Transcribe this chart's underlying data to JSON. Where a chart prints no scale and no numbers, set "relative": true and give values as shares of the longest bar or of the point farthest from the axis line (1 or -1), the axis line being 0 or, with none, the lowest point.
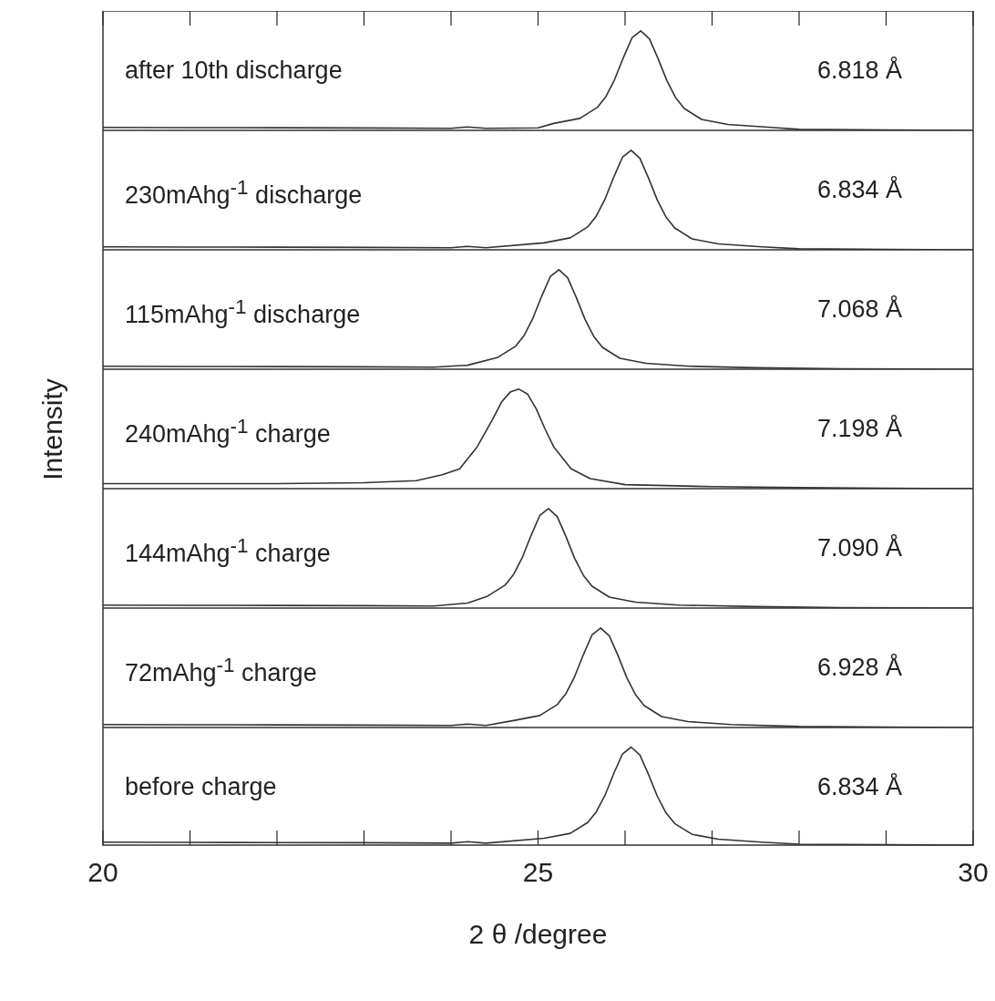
{
  "chart_data": [
    {
      "type": "line",
      "relative": true,
      "color": "#333333",
      "xlim": [
        20,
        30
      ],
      "xticks": [
        20,
        {
          "value": 21,
          "label": null
        },
        {
          "value": 22,
          "label": null
        },
        {
          "value": 23,
          "label": null
        },
        {
          "value": 24,
          "label": null
        },
        25,
        {
          "value": 26,
          "label": null
        },
        {
          "value": 27,
          "label": null
        },
        {
          "value": 28,
          "label": null
        },
        {
          "value": 29,
          "label": null
        },
        30
      ],
      "tick_labels": false,
      "annotations": [
        "after 10th discharge",
        "6.818 Å"
      ],
      "x": [
        20,
        21,
        22,
        23,
        24,
        24.19,
        24.4,
        25,
        25.18,
        25.48,
        25.68,
        25.78,
        25.88,
        25.98,
        26.08,
        26.18,
        26.28,
        26.38,
        26.48,
        26.58,
        26.68,
        26.88,
        27.18,
        27.68,
        28,
        29,
        30
      ],
      "values": [
        0.03,
        0.028,
        0.026,
        0.024,
        0.02,
        0.035,
        0.02,
        0.025,
        0.07,
        0.12,
        0.23,
        0.34,
        0.51,
        0.73,
        0.93,
        1,
        0.92,
        0.72,
        0.5,
        0.33,
        0.22,
        0.11,
        0.06,
        0.03,
        0.01,
        0.005,
        0
      ]
    },
    {
      "type": "line",
      "relative": true,
      "color": "#333333",
      "xlim": [
        20,
        30
      ],
      "xticks": [
        20,
        25,
        30
      ],
      "tick_labels": false,
      "annotations": [
        "230mAhg$^{-1}$ discharge",
        "6.834 Å"
      ],
      "x": [
        20,
        21,
        22,
        23,
        24,
        24.19,
        24.4,
        25.07,
        25.37,
        25.57,
        25.67,
        25.77,
        25.87,
        25.97,
        26.07,
        26.17,
        26.27,
        26.37,
        26.47,
        26.57,
        26.77,
        27.07,
        27.57,
        28,
        29,
        30
      ],
      "values": [
        0.03,
        0.028,
        0.026,
        0.024,
        0.02,
        0.035,
        0.02,
        0.07,
        0.12,
        0.23,
        0.34,
        0.51,
        0.73,
        0.93,
        1,
        0.92,
        0.72,
        0.5,
        0.33,
        0.22,
        0.11,
        0.06,
        0.03,
        0.01,
        0.005,
        0
      ]
    },
    {
      "type": "line",
      "relative": true,
      "color": "#333333",
      "xlim": [
        20,
        30
      ],
      "xticks": [
        20,
        25,
        30
      ],
      "tick_labels": false,
      "annotations": [
        "115mAhg$^{-1}$ discharge",
        "7.068 Å"
      ],
      "x": [
        20,
        21,
        22,
        23,
        23.8,
        24.19,
        24.54,
        24.74,
        24.84,
        24.94,
        25.04,
        25.14,
        25.24,
        25.34,
        25.44,
        25.54,
        25.64,
        25.74,
        25.94,
        26.24,
        26.74,
        27.5,
        28.5,
        30
      ],
      "values": [
        0.03,
        0.028,
        0.026,
        0.024,
        0.02,
        0.04,
        0.12,
        0.23,
        0.34,
        0.51,
        0.73,
        0.93,
        1,
        0.92,
        0.72,
        0.5,
        0.33,
        0.22,
        0.11,
        0.06,
        0.03,
        0.015,
        0.005,
        0
      ]
    },
    {
      "type": "line",
      "relative": true,
      "color": "#333333",
      "xlim": [
        20,
        30
      ],
      "xticks": [
        20,
        25,
        30
      ],
      "tick_labels": false,
      "ylabel": "Intensity",
      "annotations": [
        "240mAhg$^{-1}$ charge",
        "7.198 Å"
      ],
      "x": [
        20,
        21,
        22,
        23,
        23.6,
        23.9,
        24.1,
        24.3,
        24.48,
        24.58,
        24.68,
        24.78,
        24.88,
        24.98,
        25.08,
        25.18,
        25.38,
        25.6,
        26,
        27,
        28,
        29,
        30
      ],
      "values": [
        0.05,
        0.05,
        0.05,
        0.06,
        0.08,
        0.14,
        0.2,
        0.42,
        0.7,
        0.87,
        0.97,
        1,
        0.95,
        0.8,
        0.6,
        0.42,
        0.2,
        0.1,
        0.04,
        0.02,
        0.01,
        0.005,
        0
      ]
    },
    {
      "type": "line",
      "relative": true,
      "color": "#333333",
      "xlim": [
        20,
        30
      ],
      "xticks": [
        20,
        25,
        30
      ],
      "tick_labels": false,
      "annotations": [
        "144mAhg$^{-1}$ charge",
        "7.090 Å"
      ],
      "x": [
        20,
        21,
        22,
        23,
        23.8,
        24.19,
        24.42,
        24.62,
        24.72,
        24.82,
        24.92,
        25.02,
        25.12,
        25.22,
        25.32,
        25.42,
        25.52,
        25.62,
        25.82,
        26.12,
        26.62,
        27.5,
        28.5,
        30
      ],
      "values": [
        0.03,
        0.028,
        0.026,
        0.024,
        0.02,
        0.05,
        0.12,
        0.23,
        0.34,
        0.51,
        0.73,
        0.93,
        1,
        0.92,
        0.72,
        0.5,
        0.33,
        0.22,
        0.11,
        0.06,
        0.03,
        0.015,
        0.005,
        0
      ]
    },
    {
      "type": "line",
      "relative": true,
      "color": "#333333",
      "xlim": [
        20,
        30
      ],
      "xticks": [
        20,
        25,
        30
      ],
      "tick_labels": false,
      "annotations": [
        "72mAhg$^{-1}$ charge",
        "6.928 Å"
      ],
      "x": [
        20,
        21,
        22,
        23,
        24,
        24.19,
        24.4,
        24.72,
        25.02,
        25.22,
        25.32,
        25.42,
        25.52,
        25.62,
        25.72,
        25.82,
        25.92,
        26.02,
        26.12,
        26.22,
        26.42,
        26.72,
        27.22,
        28,
        29,
        30
      ],
      "values": [
        0.03,
        0.028,
        0.026,
        0.024,
        0.02,
        0.035,
        0.02,
        0.07,
        0.12,
        0.23,
        0.34,
        0.51,
        0.73,
        0.93,
        1,
        0.92,
        0.72,
        0.5,
        0.33,
        0.22,
        0.11,
        0.06,
        0.03,
        0.01,
        0.005,
        0
      ]
    },
    {
      "type": "line",
      "relative": true,
      "color": "#333333",
      "xlim": [
        20,
        30
      ],
      "xticks": [
        20,
        {
          "value": 21,
          "label": null
        },
        {
          "value": 22,
          "label": null
        },
        {
          "value": 23,
          "label": null
        },
        {
          "value": 24,
          "label": null
        },
        25,
        {
          "value": 26,
          "label": null
        },
        {
          "value": 27,
          "label": null
        },
        {
          "value": 28,
          "label": null
        },
        {
          "value": 29,
          "label": null
        },
        30
      ],
      "tick_labels": "x",
      "xlabel": "2 θ /degree",
      "annotations": [
        "before charge",
        "6.834 Å"
      ],
      "x": [
        20,
        21,
        22,
        23,
        24,
        24.19,
        24.4,
        25.07,
        25.37,
        25.57,
        25.67,
        25.77,
        25.87,
        25.97,
        26.07,
        26.17,
        26.27,
        26.37,
        26.47,
        26.57,
        26.77,
        27.07,
        27.57,
        28,
        29,
        30
      ],
      "values": [
        0.03,
        0.028,
        0.026,
        0.024,
        0.02,
        0.035,
        0.02,
        0.07,
        0.12,
        0.23,
        0.34,
        0.51,
        0.73,
        0.93,
        1,
        0.92,
        0.72,
        0.5,
        0.33,
        0.22,
        0.11,
        0.06,
        0.03,
        0.01,
        0.005,
        0
      ]
    }
  ]
}
